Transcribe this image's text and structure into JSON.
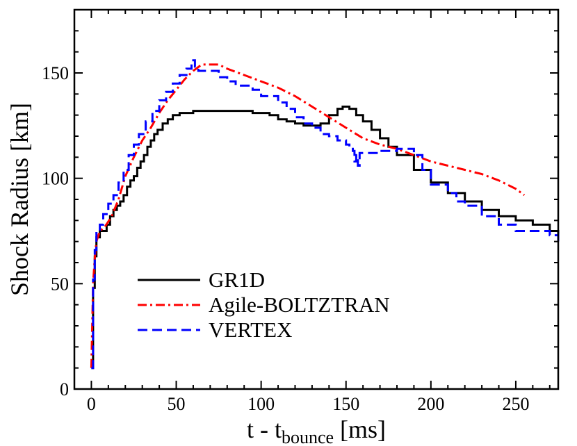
{
  "chart_data": {
    "type": "line",
    "title": "",
    "xlabel": {
      "main": "t - t",
      "sub": "bounce",
      "unit": " [ms]"
    },
    "ylabel": "Shock Radius [km]",
    "xlim": [
      -10,
      275
    ],
    "ylim": [
      0,
      180
    ],
    "x_ticks": [
      0,
      50,
      100,
      150,
      200,
      250
    ],
    "y_ticks": [
      0,
      50,
      100,
      150
    ],
    "x_tick_labels": [
      "0",
      "50",
      "100",
      "150",
      "200",
      "250"
    ],
    "y_tick_labels": [
      "0",
      "50",
      "100",
      "150"
    ],
    "grid": false,
    "legend_position": "bottom-left",
    "series": [
      {
        "name": "GR1D",
        "color": "#000000",
        "dash": "solid",
        "step": true,
        "x": [
          0,
          1,
          2,
          3,
          5,
          7,
          9,
          11,
          13,
          15,
          17,
          19,
          21,
          23,
          25,
          27,
          29,
          31,
          33,
          35,
          37,
          39,
          42,
          45,
          48,
          52,
          56,
          60,
          65,
          70,
          80,
          90,
          95,
          100,
          105,
          110,
          115,
          120,
          125,
          130,
          135,
          140,
          145,
          148,
          152,
          156,
          160,
          165,
          170,
          175,
          180,
          190,
          200,
          210,
          220,
          230,
          240,
          250,
          260,
          270,
          275
        ],
        "y": [
          10,
          48,
          63,
          72,
          75,
          75,
          78,
          82,
          85,
          87,
          89,
          92,
          96,
          99,
          101,
          105,
          108,
          111,
          115,
          118,
          121,
          123,
          126,
          128,
          130,
          131,
          131,
          132,
          132,
          132,
          132,
          132,
          131,
          131,
          130,
          128,
          127,
          126,
          125,
          125,
          126,
          130,
          133,
          134,
          133,
          130,
          127,
          123,
          119,
          115,
          111,
          104,
          98,
          93,
          89,
          85,
          82,
          80,
          78,
          75,
          73
        ]
      },
      {
        "name": "Agile-BOLTZTRAN",
        "color": "#ff0000",
        "dash": "dashdot",
        "step": false,
        "x": [
          0,
          1,
          2,
          3,
          5,
          8,
          12,
          16,
          20,
          25,
          30,
          35,
          40,
          45,
          50,
          55,
          60,
          65,
          70,
          75,
          80,
          90,
          100,
          110,
          120,
          130,
          140,
          150,
          160,
          170,
          180,
          190,
          200,
          210,
          220,
          230,
          240,
          250,
          255
        ],
        "y": [
          10,
          50,
          62,
          70,
          75,
          77,
          82,
          90,
          101,
          110,
          118,
          124,
          131,
          137,
          142,
          147,
          151,
          154,
          154,
          154,
          152,
          149,
          146,
          143,
          139,
          134,
          129,
          124,
          119,
          116,
          114,
          111,
          108,
          106,
          104,
          102,
          99,
          95,
          92
        ]
      },
      {
        "name": "VERTEX",
        "color": "#0000ff",
        "dash": "dashed",
        "step": true,
        "x": [
          0,
          1,
          2,
          3,
          5,
          7,
          10,
          13,
          16,
          19,
          22,
          25,
          28,
          32,
          36,
          40,
          44,
          48,
          52,
          56,
          59,
          61,
          63,
          65,
          70,
          75,
          80,
          85,
          90,
          95,
          100,
          105,
          110,
          115,
          120,
          125,
          130,
          135,
          140,
          145,
          150,
          152,
          154,
          155,
          156,
          157,
          158,
          160,
          165,
          170,
          175,
          180,
          185,
          190,
          195,
          200,
          205,
          210,
          215,
          220,
          230,
          240,
          250,
          260,
          270,
          275
        ],
        "y": [
          10,
          52,
          66,
          74,
          78,
          83,
          88,
          92,
          98,
          104,
          111,
          116,
          121,
          127,
          132,
          137,
          141,
          145,
          149,
          152,
          156,
          153,
          151,
          151,
          151,
          148,
          146,
          144,
          144,
          142,
          139,
          139,
          136,
          133,
          129,
          126,
          124,
          121,
          120,
          118,
          116,
          115,
          113,
          108,
          111,
          106,
          112,
          112,
          112,
          113,
          113,
          114,
          114,
          111,
          104,
          97,
          97,
          93,
          89,
          87,
          82,
          78,
          75,
          75,
          73,
          70
        ]
      }
    ]
  }
}
